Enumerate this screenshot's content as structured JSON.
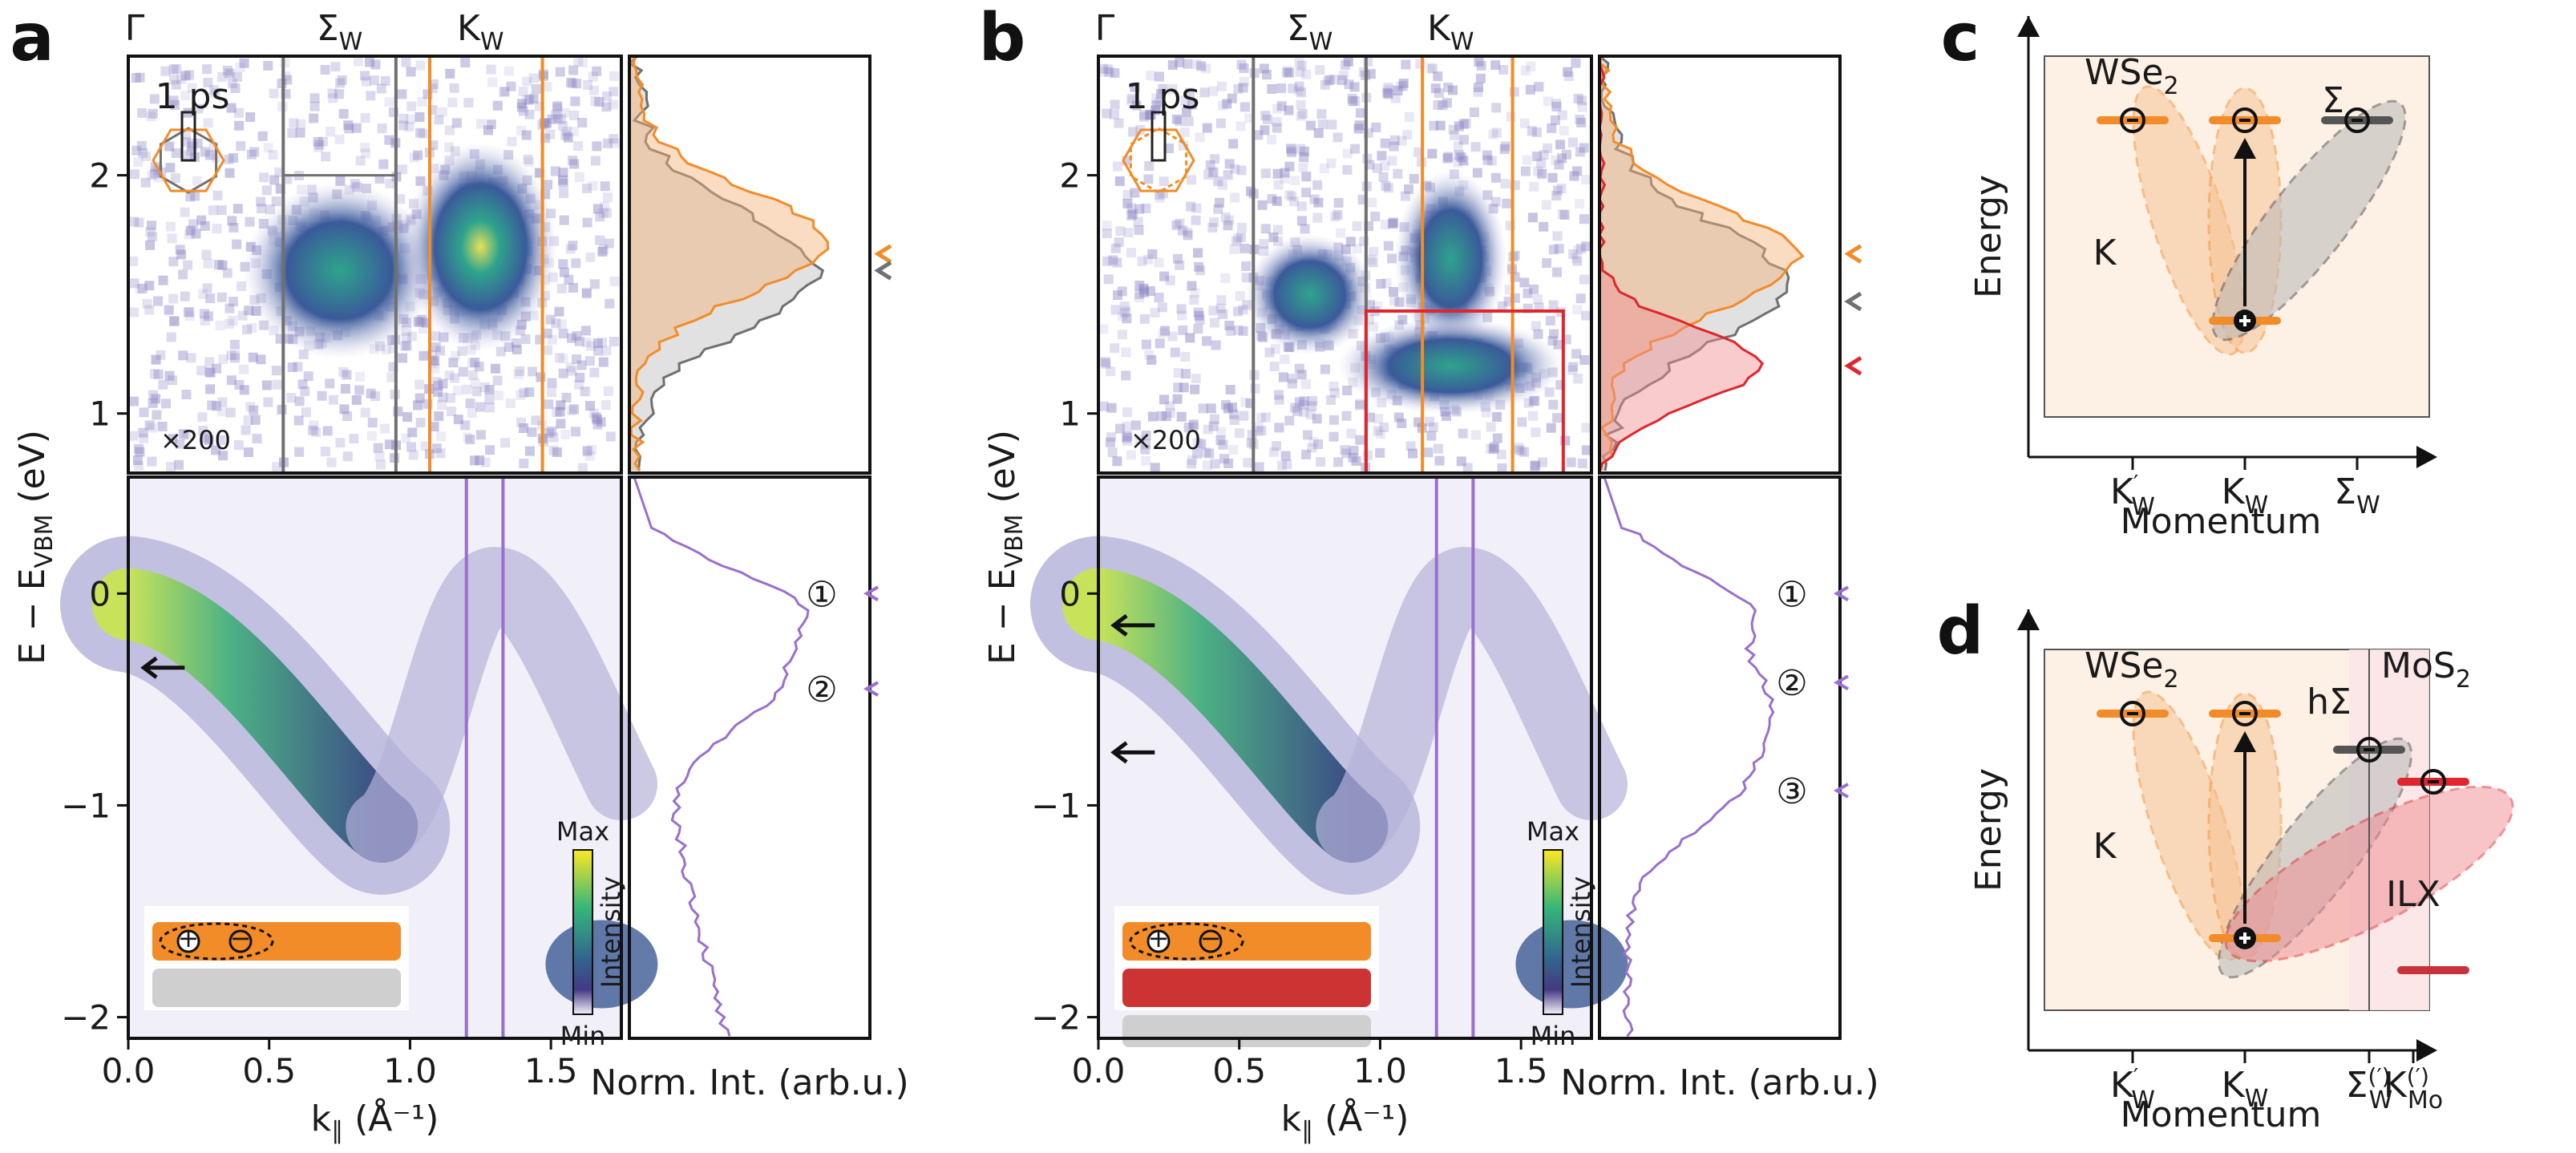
{
  "colors": {
    "orange": "#f28c28",
    "gray": "#707070",
    "red": "#e0262c",
    "purple": "#9a6fcf",
    "black": "#111111"
  },
  "panels": {
    "a": {
      "letter": "a",
      "delay": "1 ps",
      "scale": "×200",
      "overlay_labels": [
        "①",
        "②"
      ]
    },
    "b": {
      "letter": "b",
      "delay": "1 ps",
      "scale": "×200",
      "overlay_labels": [
        "①",
        "②",
        "③"
      ]
    },
    "c": {
      "letter": "c"
    },
    "d": {
      "letter": "d"
    }
  },
  "axes": {
    "ylabel": "E − E",
    "ylabel_sub": "VBM",
    "ylabel_unit": " (eV)",
    "xlabel": "k",
    "xlabel_sub": "∥",
    "xlabel_unit": " (Å⁻¹)",
    "edc_xlabel": "Norm. Int. (arb.u.)",
    "top_yticks": [
      "2",
      "1"
    ],
    "bottom_yticks": [
      "0",
      "−1",
      "−2"
    ],
    "xticks": [
      "0.0",
      "0.5",
      "1.0",
      "1.5"
    ],
    "top_markers": {
      "gamma": "Γ",
      "sigma": "Σ",
      "sigma_sub": "W",
      "k": "K",
      "k_sub": "W"
    }
  },
  "colorbar": {
    "max_label": "Max",
    "min_label": "Min",
    "title": "Intensity"
  },
  "schematic": {
    "energy": "Energy",
    "momentum": "Momentum",
    "wse2_label": "WSe",
    "wse2_sub": "2",
    "mos2_label": "MoS",
    "mos2_sub": "2",
    "k_label": "K",
    "sigma_label": "Σ",
    "hsigma_label": "hΣ",
    "ilx_label": "ILX",
    "c_ticks": [
      {
        "main": "K",
        "sup": "′",
        "sub": "W"
      },
      {
        "main": "K",
        "sup": "",
        "sub": "W"
      },
      {
        "main": "Σ",
        "sup": "",
        "sub": "W"
      }
    ],
    "d_ticks": [
      {
        "main": "K",
        "sup": "′",
        "sub": "W"
      },
      {
        "main": "K",
        "sup": "",
        "sub": "W"
      },
      {
        "main": "Σ",
        "sup": "(′)",
        "sub": "W"
      },
      {
        "main": "K",
        "sup": "(′)",
        "sub": "Mo"
      }
    ]
  }
}
